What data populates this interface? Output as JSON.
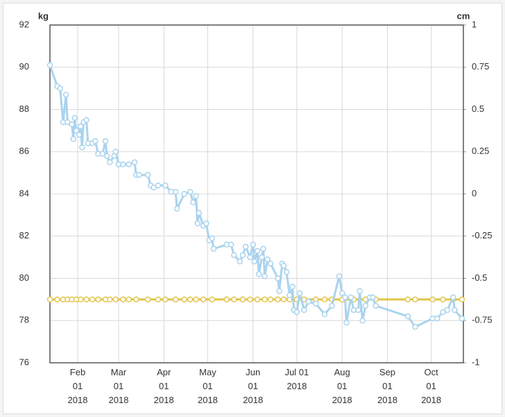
{
  "chart_data": {
    "type": "line",
    "ylabel": "kg",
    "y2label": "cm",
    "xlim": [
      "2018-01-13",
      "2018-10-23"
    ],
    "xticks": [
      {
        "value": "2018-02-01",
        "label": "Feb\n01\n2018"
      },
      {
        "value": "2018-03-01",
        "label": "Mar\n01\n2018"
      },
      {
        "value": "2018-04-01",
        "label": "Apr\n01\n2018"
      },
      {
        "value": "2018-05-01",
        "label": "May\n01\n2018"
      },
      {
        "value": "2018-06-01",
        "label": "Jun\n01\n2018"
      },
      {
        "value": "2018-07-01",
        "label": "Jul 01\n2018"
      },
      {
        "value": "2018-08-01",
        "label": "Aug\n01\n2018"
      },
      {
        "value": "2018-09-01",
        "label": "Sep\n01\n2018"
      },
      {
        "value": "2018-10-01",
        "label": "Oct\n01\n2018"
      }
    ],
    "ylim": [
      76,
      92
    ],
    "yticks": [
      76,
      78,
      80,
      82,
      84,
      86,
      88,
      90,
      92
    ],
    "y2lim": [
      -1,
      1
    ],
    "y2ticks": [
      -1,
      -0.75,
      -0.5,
      -0.25,
      0,
      0.25,
      0.5,
      0.75,
      1
    ],
    "grid": true,
    "series": [
      {
        "color": "#a9d3ee",
        "x": [
          "2018-01-13",
          "2018-01-18",
          "2018-01-20",
          "2018-01-22",
          "2018-01-24",
          "2018-01-25",
          "2018-01-28",
          "2018-01-29",
          "2018-01-30",
          "2018-01-31",
          "2018-02-02",
          "2018-02-03",
          "2018-02-04",
          "2018-02-05",
          "2018-02-07",
          "2018-02-08",
          "2018-02-11",
          "2018-02-13",
          "2018-02-15",
          "2018-02-18",
          "2018-02-20",
          "2018-02-21",
          "2018-02-23",
          "2018-02-26",
          "2018-02-27",
          "2018-03-01",
          "2018-03-04",
          "2018-03-08",
          "2018-03-12",
          "2018-03-13",
          "2018-03-15",
          "2018-03-21",
          "2018-03-23",
          "2018-03-25",
          "2018-03-28",
          "2018-04-02",
          "2018-04-06",
          "2018-04-09",
          "2018-04-10",
          "2018-04-15",
          "2018-04-19",
          "2018-04-21",
          "2018-04-23",
          "2018-04-24",
          "2018-04-25",
          "2018-04-28",
          "2018-04-30",
          "2018-05-02",
          "2018-05-04",
          "2018-05-05",
          "2018-05-14",
          "2018-05-17",
          "2018-05-19",
          "2018-05-23",
          "2018-05-25",
          "2018-05-27",
          "2018-05-30",
          "2018-06-01",
          "2018-06-02",
          "2018-06-04",
          "2018-06-05",
          "2018-06-07",
          "2018-06-08",
          "2018-06-09",
          "2018-06-11",
          "2018-06-13",
          "2018-06-18",
          "2018-06-19",
          "2018-06-21",
          "2018-06-22",
          "2018-06-24",
          "2018-06-26",
          "2018-06-28",
          "2018-06-29",
          "2018-07-01",
          "2018-07-03",
          "2018-07-06",
          "2018-07-09",
          "2018-07-14",
          "2018-07-20",
          "2018-07-25",
          "2018-07-30",
          "2018-08-01",
          "2018-08-03",
          "2018-08-04",
          "2018-08-07",
          "2018-08-09",
          "2018-08-12",
          "2018-08-13",
          "2018-08-15",
          "2018-08-17",
          "2018-08-20",
          "2018-08-22",
          "2018-08-24",
          "2018-09-15",
          "2018-09-20",
          "2018-10-02",
          "2018-10-05",
          "2018-10-09",
          "2018-10-12",
          "2018-10-16",
          "2018-10-17",
          "2018-10-22"
        ],
        "values": [
          90.1,
          89.1,
          89.0,
          87.4,
          88.7,
          87.4,
          87.3,
          86.6,
          87.6,
          87.0,
          86.8,
          87.2,
          86.2,
          87.4,
          87.5,
          86.4,
          86.4,
          86.5,
          85.9,
          85.9,
          86.5,
          85.8,
          85.5,
          85.8,
          86.0,
          85.4,
          85.4,
          85.4,
          85.5,
          84.9,
          84.9,
          84.9,
          84.4,
          84.3,
          84.4,
          84.4,
          84.1,
          84.1,
          83.3,
          84.0,
          84.1,
          83.6,
          83.9,
          82.6,
          83.1,
          82.5,
          82.6,
          81.8,
          81.9,
          81.4,
          81.6,
          81.6,
          81.1,
          80.8,
          81.1,
          81.5,
          81.0,
          81.6,
          80.8,
          81.3,
          80.2,
          81.0,
          81.4,
          80.1,
          80.9,
          80.7,
          80.0,
          79.4,
          80.7,
          80.6,
          80.3,
          79.2,
          79.6,
          78.5,
          78.4,
          79.3,
          78.5,
          78.9,
          78.8,
          78.3,
          78.7,
          80.1,
          79.3,
          79.1,
          77.9,
          79.1,
          78.5,
          78.5,
          79.4,
          78.0,
          78.7,
          79.1,
          79.1,
          78.7,
          78.2,
          77.7,
          78.1,
          78.1,
          78.4,
          78.5,
          79.1,
          78.5,
          78.1
        ]
      },
      {
        "color": "#e2c44a",
        "x": [
          "2018-01-13",
          "2018-01-18",
          "2018-01-22",
          "2018-01-25",
          "2018-01-28",
          "2018-01-31",
          "2018-02-03",
          "2018-02-07",
          "2018-02-11",
          "2018-02-15",
          "2018-02-20",
          "2018-02-23",
          "2018-02-27",
          "2018-03-04",
          "2018-03-08",
          "2018-03-13",
          "2018-03-21",
          "2018-03-28",
          "2018-04-02",
          "2018-04-09",
          "2018-04-15",
          "2018-04-19",
          "2018-04-23",
          "2018-04-28",
          "2018-05-04",
          "2018-05-14",
          "2018-05-19",
          "2018-05-25",
          "2018-05-30",
          "2018-06-04",
          "2018-06-09",
          "2018-06-13",
          "2018-06-18",
          "2018-06-22",
          "2018-06-26",
          "2018-07-01",
          "2018-07-06",
          "2018-07-14",
          "2018-07-20",
          "2018-07-25",
          "2018-08-01",
          "2018-08-09",
          "2018-08-17",
          "2018-08-24",
          "2018-09-15",
          "2018-09-20",
          "2018-10-02",
          "2018-10-09",
          "2018-10-16",
          "2018-10-22"
        ],
        "values": [
          79,
          79,
          79,
          79,
          79,
          79,
          79,
          79,
          79,
          79,
          79,
          79,
          79,
          79,
          79,
          79,
          79,
          79,
          79,
          79,
          79,
          79,
          79,
          79,
          79,
          79,
          79,
          79,
          79,
          79,
          79,
          79,
          79,
          79,
          79,
          79,
          79,
          79,
          79,
          79,
          79,
          79,
          79,
          79,
          79,
          79,
          79,
          79,
          79,
          79
        ]
      }
    ]
  }
}
